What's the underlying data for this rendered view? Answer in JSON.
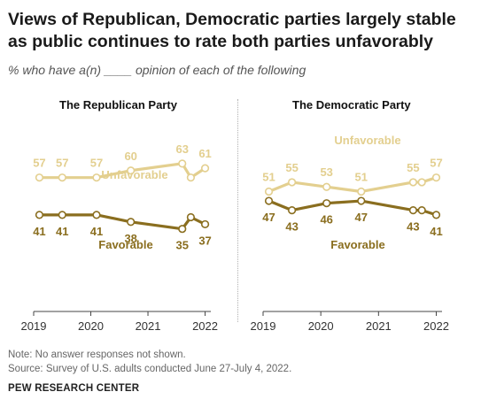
{
  "title": "Views of Republican, Democratic parties largely stable as public continues to rate both parties unfavorably",
  "subtitle": "% who have a(n) ____ opinion of each of the following",
  "note": "Note: No answer responses not shown.",
  "source": "Source: Survey of U.S. adults conducted June 27-July 4, 2022.",
  "org": "PEW RESEARCH CENTER",
  "colors": {
    "unfavorable": "#e3cf8f",
    "favorable": "#8a6e1f",
    "axis": "#444444"
  },
  "chart_data": [
    {
      "type": "line",
      "title": "The Republican Party",
      "x_ticks": [
        "2019",
        "2020",
        "2021",
        "2022"
      ],
      "xlim": [
        2019.0,
        2022.1
      ],
      "ylim": [
        0,
        80
      ],
      "series": [
        {
          "name": "Unfavorable",
          "x": [
            2019.1,
            2019.5,
            2020.1,
            2020.7,
            2021.6,
            2021.75,
            2022.0
          ],
          "values": [
            57,
            57,
            57,
            60,
            63,
            57,
            61
          ],
          "labels": [
            "57",
            "57",
            "57",
            "60",
            "63",
            "",
            "61"
          ]
        },
        {
          "name": "Favorable",
          "x": [
            2019.1,
            2019.5,
            2020.1,
            2020.7,
            2021.6,
            2021.75,
            2022.0
          ],
          "values": [
            41,
            41,
            41,
            38,
            35,
            40,
            37
          ],
          "labels": [
            "41",
            "41",
            "41",
            "38",
            "35",
            "",
            "37"
          ]
        }
      ]
    },
    {
      "type": "line",
      "title": "The Democratic Party",
      "x_ticks": [
        "2019",
        "2020",
        "2021",
        "2022"
      ],
      "xlim": [
        2019.0,
        2022.1
      ],
      "ylim": [
        0,
        80
      ],
      "series": [
        {
          "name": "Unfavorable",
          "x": [
            2019.1,
            2019.5,
            2020.1,
            2020.7,
            2021.6,
            2021.75,
            2022.0
          ],
          "values": [
            51,
            55,
            53,
            51,
            55,
            55,
            57
          ],
          "labels": [
            "51",
            "55",
            "53",
            "51",
            "55",
            "",
            "57"
          ]
        },
        {
          "name": "Favorable",
          "x": [
            2019.1,
            2019.5,
            2020.1,
            2020.7,
            2021.6,
            2021.75,
            2022.0
          ],
          "values": [
            47,
            43,
            46,
            47,
            43,
            43,
            41
          ],
          "labels": [
            "47",
            "43",
            "46",
            "47",
            "43",
            "",
            "41"
          ]
        }
      ]
    }
  ]
}
